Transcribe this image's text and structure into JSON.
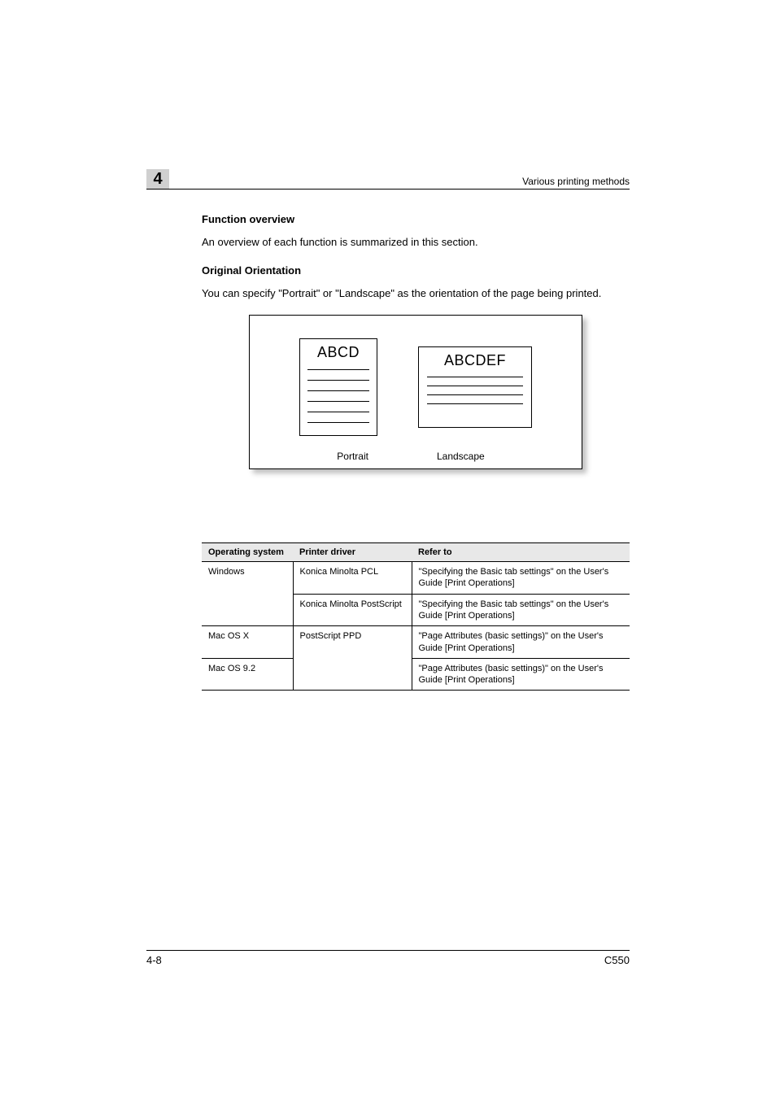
{
  "chapter_number": "4",
  "running_header": "Various printing methods",
  "section": {
    "title": "Function overview",
    "intro": "An overview of each function is summarized in this section.",
    "sub_title": "Original Orientation",
    "sub_body": "You can specify \"Portrait\" or \"Landscape\" as the orientation of the page being printed."
  },
  "figure": {
    "portrait_text": "ABCD",
    "landscape_text": "ABCDEF",
    "portrait_label": "Portrait",
    "landscape_label": "Landscape"
  },
  "table": {
    "headers": {
      "os": "Operating system",
      "driver": "Printer driver",
      "refer": "Refer to"
    },
    "rows": [
      {
        "os": "Windows",
        "driver": "Konica Minolta PCL",
        "refer": "\"Specifying the Basic tab settings\" on the User's Guide [Print Operations]"
      },
      {
        "os": "",
        "driver": "Konica Minolta PostScript",
        "refer": "\"Specifying the Basic tab settings\" on the User's Guide [Print Operations]"
      },
      {
        "os": "Mac OS X",
        "driver": "PostScript PPD",
        "refer": "\"Page Attributes (basic settings)\" on the User's Guide [Print Operations]"
      },
      {
        "os": "Mac OS 9.2",
        "driver": "",
        "refer": "\"Page Attributes (basic settings)\" on the User's Guide [Print Operations]"
      }
    ]
  },
  "footer": {
    "page": "4-8",
    "model": "C550"
  },
  "colors": {
    "chapter_bg": "#d0d0d0",
    "header_bg": "#e8e8e8",
    "text": "#000000",
    "page_bg": "#ffffff"
  }
}
